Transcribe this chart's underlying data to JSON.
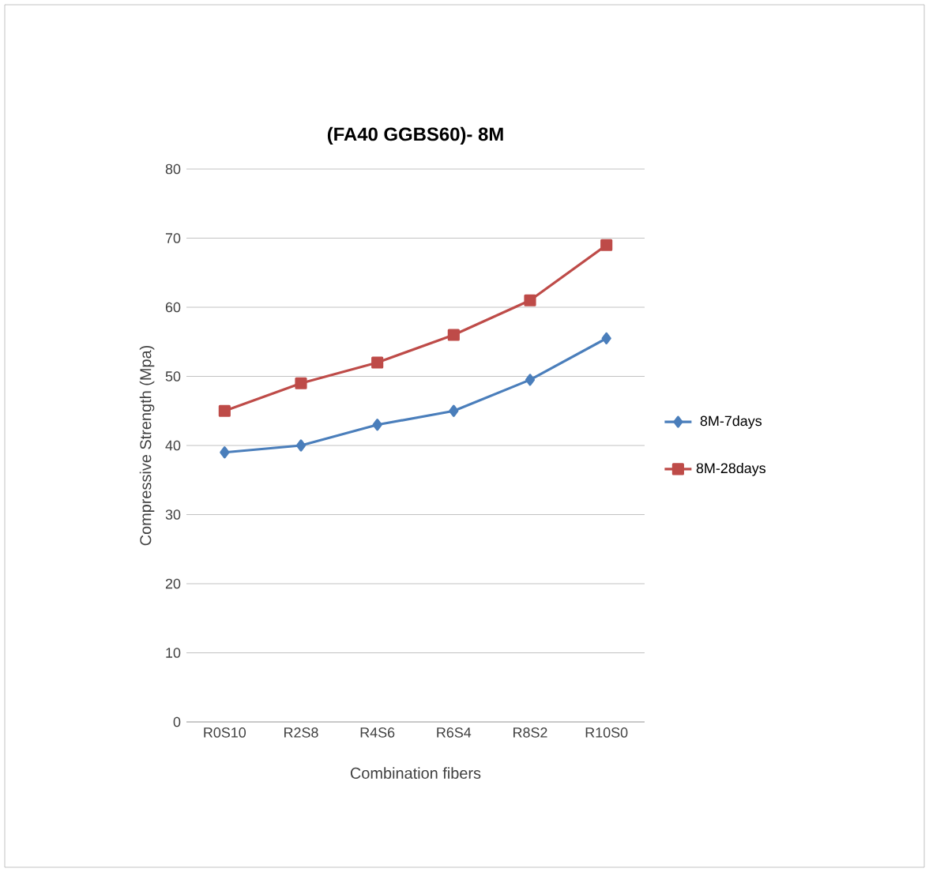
{
  "chart_data": {
    "type": "line",
    "title": "(FA40 GGBS60)- 8M",
    "xlabel": "Combination fibers",
    "ylabel": "Compressive Strength (Mpa)",
    "categories": [
      "R0S10",
      "R2S8",
      "R4S6",
      "R6S4",
      "R8S2",
      "R10S0"
    ],
    "series": [
      {
        "name": "8M-7days",
        "color": "#4a7ebb",
        "marker": "diamond",
        "values": [
          39,
          40,
          43,
          45,
          49.5,
          55.5
        ]
      },
      {
        "name": "8M-28days",
        "color": "#be4b48",
        "marker": "square",
        "values": [
          45,
          49,
          52,
          56,
          61,
          69
        ]
      }
    ],
    "ylim": [
      0,
      80
    ],
    "yticks": [
      0,
      10,
      20,
      30,
      40,
      50,
      60,
      70,
      80
    ],
    "grid": "y",
    "legend": "right"
  }
}
